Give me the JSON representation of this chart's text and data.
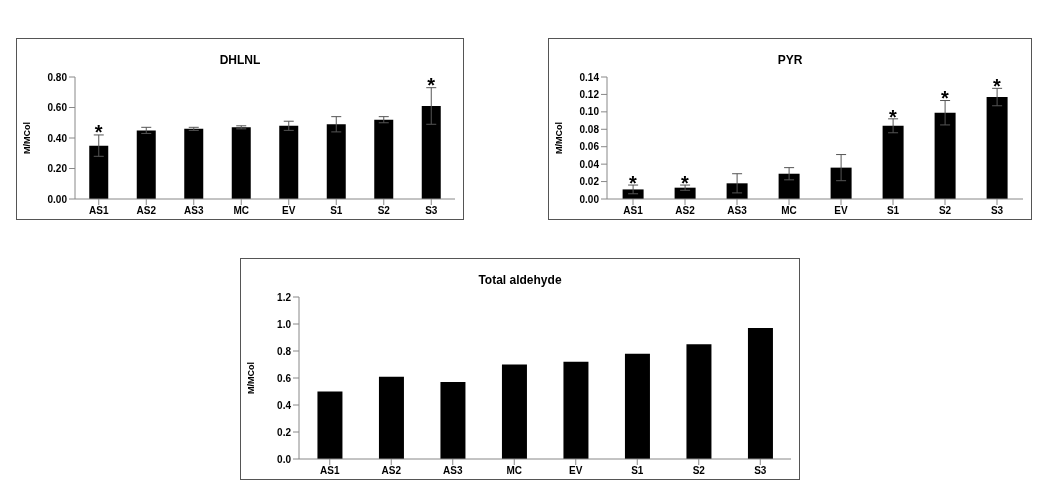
{
  "chart_data": [
    {
      "type": "bar",
      "title": "DHLNL",
      "ylabel": "M/MCol",
      "categories": [
        "AS1",
        "AS2",
        "AS3",
        "MC",
        "EV",
        "S1",
        "S2",
        "S3"
      ],
      "color": "#000000",
      "values": [
        0.35,
        0.45,
        0.46,
        0.47,
        0.48,
        0.49,
        0.52,
        0.61
      ],
      "errors": [
        0.07,
        0.02,
        0.01,
        0.01,
        0.03,
        0.05,
        0.02,
        0.12
      ],
      "ylim": [
        0,
        0.8
      ],
      "yticks": [
        {
          "value": 0,
          "label": "0.00"
        },
        {
          "value": 0.2,
          "label": "0.20"
        },
        {
          "value": 0.4,
          "label": "0.40"
        },
        {
          "value": 0.6,
          "label": "0.60"
        },
        {
          "value": 0.8,
          "label": "0.80"
        }
      ],
      "annotations": [
        {
          "text": "*",
          "x": "AS1",
          "y": 0.44
        },
        {
          "text": "*",
          "x": "S3",
          "y": 0.75
        }
      ],
      "grid": false,
      "legend": false
    },
    {
      "type": "bar",
      "title": "PYR",
      "ylabel": "M/MCol",
      "categories": [
        "AS1",
        "AS2",
        "AS3",
        "MC",
        "EV",
        "S1",
        "S2",
        "S3"
      ],
      "color": "#000000",
      "values": [
        0.011,
        0.013,
        0.018,
        0.029,
        0.036,
        0.084,
        0.099,
        0.117
      ],
      "errors": [
        0.005,
        0.003,
        0.011,
        0.007,
        0.015,
        0.008,
        0.014,
        0.01
      ],
      "ylim": [
        0,
        0.14
      ],
      "yticks": [
        {
          "value": 0,
          "label": "0.00"
        },
        {
          "value": 0.02,
          "label": "0.02"
        },
        {
          "value": 0.04,
          "label": "0.04"
        },
        {
          "value": 0.06,
          "label": "0.06"
        },
        {
          "value": 0.08,
          "label": "0.08"
        },
        {
          "value": 0.1,
          "label": "0.10"
        },
        {
          "value": 0.12,
          "label": "0.12"
        },
        {
          "value": 0.14,
          "label": "0.14"
        }
      ],
      "annotations": [
        {
          "text": "*",
          "x": "AS1",
          "y": 0.018
        },
        {
          "text": "*",
          "x": "AS2",
          "y": 0.018
        },
        {
          "text": "*",
          "x": "S1",
          "y": 0.094
        },
        {
          "text": "*",
          "x": "S2",
          "y": 0.116
        },
        {
          "text": "*",
          "x": "S3",
          "y": 0.13
        }
      ],
      "grid": false,
      "legend": false
    },
    {
      "type": "bar",
      "title": "Total aldehyde",
      "ylabel": "M/MCol",
      "categories": [
        "AS1",
        "AS2",
        "AS3",
        "MC",
        "EV",
        "S1",
        "S2",
        "S3"
      ],
      "color": "#000000",
      "values": [
        0.5,
        0.61,
        0.57,
        0.7,
        0.72,
        0.78,
        0.85,
        0.97
      ],
      "ylim": [
        0,
        1.2
      ],
      "yticks": [
        {
          "value": 0,
          "label": "0.0"
        },
        {
          "value": 0.2,
          "label": "0.2"
        },
        {
          "value": 0.4,
          "label": "0.4"
        },
        {
          "value": 0.6,
          "label": "0.6"
        },
        {
          "value": 0.8,
          "label": "0.8"
        },
        {
          "value": 1,
          "label": "1.0"
        },
        {
          "value": 1.2,
          "label": "1.2"
        }
      ],
      "grid": false,
      "legend": false
    }
  ]
}
